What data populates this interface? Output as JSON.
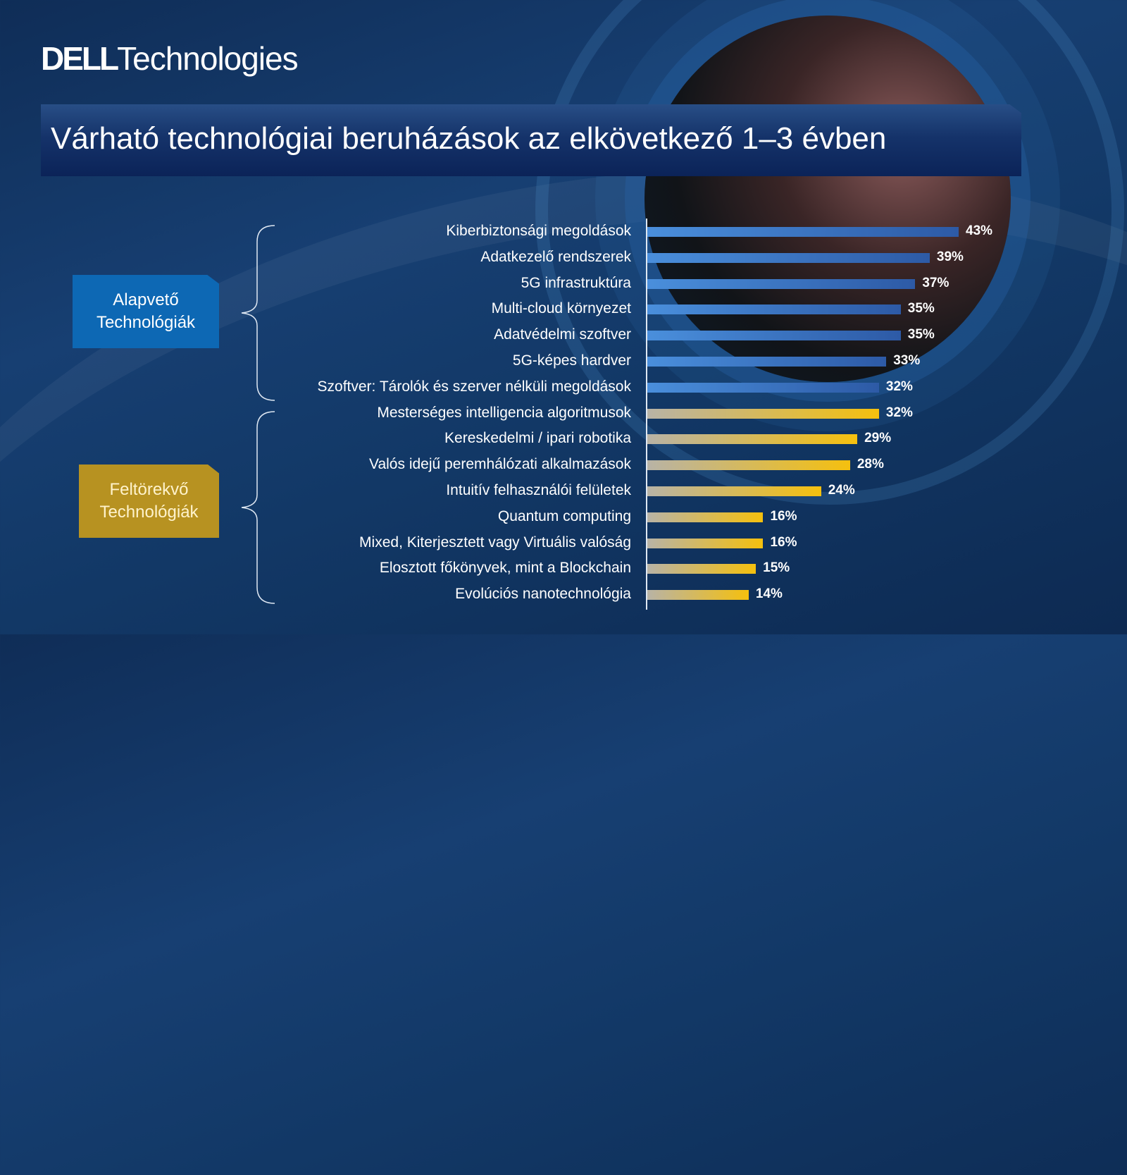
{
  "logo": {
    "brand": "DELL",
    "product": "Technologies"
  },
  "title": "Várható technológiai beruházások az elkövetkező 1–3 évben",
  "categories": {
    "core": "Alapvető Technológiák",
    "emerging": "Feltörekvő Technológiák"
  },
  "colors": {
    "core_box": "#0d68b4",
    "emerging_box": "#b79221",
    "core_bar": "#3f7fd0",
    "emerging_bar": "#f5c00e"
  },
  "chart_data": {
    "type": "bar",
    "orientation": "horizontal",
    "unit": "%",
    "categories": [
      "Kiberbiztonsági megoldások",
      "Adatkezelő rendszerek",
      "5G infrastruktúra",
      "Multi-cloud környezet",
      "Adatvédelmi szoftver",
      "5G-képes hardver",
      "Szoftver: Tárolók és szerver nélküli megoldások",
      "Mesterséges intelligencia algoritmusok",
      "Kereskedelmi / ipari robotika",
      "Valós idejű peremhálózati alkalmazások",
      "Intuitív felhasználói felületek",
      "Quantum computing",
      "Mixed, Kiterjesztett vagy Virtuális valóság",
      "Elosztott főkönyvek, mint a Blockchain",
      "Evolúciós nanotechnológia"
    ],
    "values": [
      43,
      39,
      37,
      35,
      35,
      33,
      32,
      32,
      29,
      28,
      24,
      16,
      16,
      15,
      14
    ],
    "labels": [
      "43%",
      "39%",
      "37%",
      "35%",
      "35%",
      "33%",
      "32%",
      "32%",
      "29%",
      "28%",
      "24%",
      "16%",
      "16%",
      "15%",
      "14%"
    ],
    "groups": [
      "core",
      "core",
      "core",
      "core",
      "core",
      "core",
      "core",
      "emerging",
      "emerging",
      "emerging",
      "emerging",
      "emerging",
      "emerging",
      "emerging",
      "emerging"
    ],
    "xlim": [
      0,
      43
    ]
  }
}
